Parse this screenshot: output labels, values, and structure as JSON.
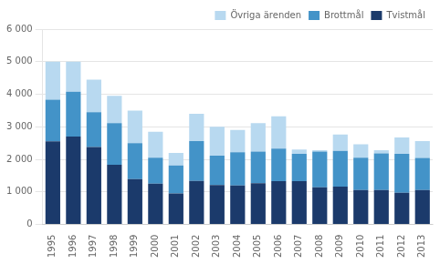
{
  "chart_data": {
    "type": "bar",
    "categories": [
      "1995",
      "1996",
      "1997",
      "1998",
      "1999",
      "2000",
      "2001",
      "2002",
      "2003",
      "2004",
      "2005",
      "2006",
      "2007",
      "2008",
      "2009",
      "2010",
      "2011",
      "2012",
      "2013"
    ],
    "series": [
      {
        "name": "Tvistmål",
        "color": "#1b3a6b",
        "values": [
          2550,
          2700,
          2380,
          1830,
          1390,
          1250,
          950,
          1340,
          1210,
          1200,
          1270,
          1330,
          1330,
          1140,
          1160,
          1060,
          1060,
          970,
          1060
        ]
      },
      {
        "name": "Brottmål",
        "color": "#4393c8",
        "values": [
          1280,
          1380,
          1070,
          1280,
          1110,
          800,
          860,
          1220,
          900,
          1020,
          970,
          1000,
          840,
          1100,
          1100,
          990,
          1120,
          1200,
          980
        ]
      },
      {
        "name": "Övriga ärenden",
        "color": "#b8d9f0",
        "values": [
          1170,
          920,
          1000,
          840,
          1000,
          800,
          390,
          840,
          890,
          680,
          870,
          990,
          130,
          40,
          500,
          410,
          100,
          500,
          520
        ]
      }
    ],
    "stacked": true,
    "ylim": [
      0,
      6000
    ],
    "yticks": [
      0,
      {
        "value": 1000,
        "label": "1 000"
      },
      {
        "value": 2000,
        "label": "2 000"
      },
      {
        "value": 3000,
        "label": "3 000"
      },
      {
        "value": 4000,
        "label": "4 000"
      },
      {
        "value": 5000,
        "label": "5 000"
      },
      {
        "value": 6000,
        "label": "6 000"
      }
    ],
    "grid": true,
    "legend": "upper right"
  }
}
